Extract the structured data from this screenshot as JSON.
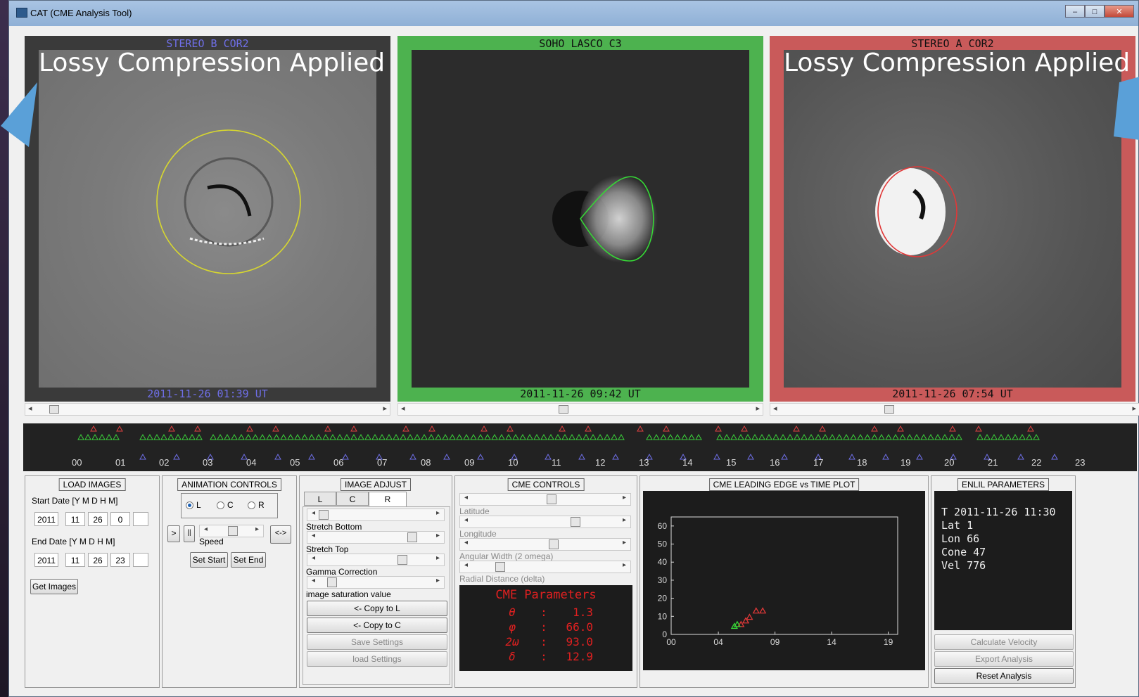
{
  "window": {
    "title": "CAT (CME Analysis Tool)",
    "buttons": [
      "–",
      "□",
      "✕"
    ]
  },
  "overlay": {
    "lossy_text": "Lossy Compression Applied"
  },
  "image_panels": [
    {
      "top_caption": "STEREO B COR2",
      "bottom_caption": "2011-11-26 01:39 UT",
      "frame_color": "#3a3a3a",
      "caption_color": "#6f6fe8",
      "outline_color": "#d6d630"
    },
    {
      "top_caption": "SOHO LASCO C3",
      "bottom_caption": "2011-11-26 09:42 UT",
      "frame_color": "#4db24f",
      "caption_color": "#111111",
      "outline_color": "#36d836"
    },
    {
      "top_caption": "STEREO A COR2",
      "bottom_caption": "2011-11-26 07:54 UT",
      "frame_color": "#c95a5a",
      "caption_color": "#111111",
      "outline_color": "#e03838"
    }
  ],
  "timeline": {
    "hours": [
      "00",
      "01",
      "02",
      "03",
      "04",
      "05",
      "06",
      "07",
      "08",
      "09",
      "10",
      "11",
      "12",
      "13",
      "14",
      "15",
      "16",
      "17",
      "18",
      "19",
      "20",
      "21",
      "22",
      "23"
    ]
  },
  "load_images": {
    "title": "LOAD IMAGES",
    "start_label": "Start Date [Y M D  H M]",
    "start": [
      "2011",
      "11",
      "26",
      "0",
      ""
    ],
    "end_label": "End Date [Y M D  H M]",
    "end": [
      "2011",
      "11",
      "26",
      "23",
      ""
    ],
    "get_button": "Get Images"
  },
  "animation": {
    "title": "ANIMATION CONTROLS",
    "radios": [
      "L",
      "C",
      "R"
    ],
    "selected": "L",
    "play": ">",
    "pause": "||",
    "speed_label": "Speed",
    "swap": "<->",
    "set_start": "Set Start",
    "set_end": "Set End"
  },
  "image_adjust": {
    "title": "IMAGE ADJUST",
    "tabs": [
      "L",
      "C",
      "R"
    ],
    "active_tab": "R",
    "labels": [
      "Stretch Bottom",
      "Stretch Top",
      "Gamma Correction",
      "image saturation value"
    ],
    "copy_l": "<- Copy to L",
    "copy_c": "<- Copy to C",
    "save": "Save Settings",
    "load": "load Settings"
  },
  "cme_controls": {
    "title": "CME CONTROLS",
    "labels": [
      "Latitude",
      "Longitude",
      "Angular Width (2 omega)",
      "Radial Distance (delta)"
    ],
    "params_title": "CME Parameters",
    "params": [
      {
        "sym": "θ",
        "sep": ":",
        "val": "1.3"
      },
      {
        "sym": "φ",
        "sep": ":",
        "val": "66.0"
      },
      {
        "sym": "2ω",
        "sep": ":",
        "val": "93.0"
      },
      {
        "sym": "δ",
        "sep": ":",
        "val": "12.9"
      }
    ]
  },
  "plot": {
    "title": "CME LEADING EDGE vs TIME PLOT",
    "y_ticks": [
      "0",
      "10",
      "20",
      "30",
      "40",
      "50",
      "60"
    ],
    "x_ticks": [
      "00",
      "04",
      "09",
      "14",
      "19"
    ]
  },
  "chart_data": {
    "type": "scatter",
    "title": "CME LEADING EDGE vs TIME PLOT",
    "xlabel": "",
    "ylabel": "",
    "xlim": [
      0,
      24
    ],
    "ylim": [
      0,
      65
    ],
    "x_tick_labels": [
      "00",
      "04",
      "09",
      "14",
      "19"
    ],
    "y_ticks": [
      0,
      10,
      20,
      30,
      40,
      50,
      60
    ],
    "grid": false,
    "series": [
      {
        "color": "#e03838",
        "x": [
          7.4,
          7.9,
          8.3,
          9.0,
          9.7
        ],
        "y": [
          5.5,
          7.5,
          9.5,
          13.0,
          13.0
        ]
      },
      {
        "color": "#36d836",
        "x": [
          6.7,
          7.0
        ],
        "y": [
          4.5,
          5.5
        ]
      }
    ]
  },
  "enlil": {
    "title": "ENLIL PARAMETERS",
    "lines": [
      "T 2011-11-26 11:30",
      "Lat 1",
      "Lon 66",
      "Cone 47",
      "Vel 776"
    ],
    "calc_velocity": "Calculate Velocity",
    "export": "Export Analysis",
    "reset": "Reset Analysis"
  }
}
